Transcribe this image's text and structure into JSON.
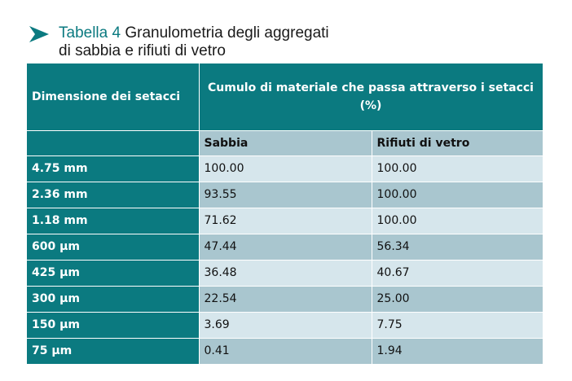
{
  "caption": {
    "prefix": "Tabella 4",
    "line1_rest": " Granulometria degli aggregati",
    "line2": "di sabbia e rifiuti di vetro"
  },
  "table": {
    "header_left": "Dimensione dei setacci",
    "header_span": "Cumulo di materiale che passa attraverso i setacci (%)",
    "sub_left": "",
    "sub_sand": "Sabbia",
    "sub_glass": "Rifiuti di vetro",
    "rows": [
      {
        "size": "4.75 mm",
        "sand": "100.00",
        "glass": "100.00"
      },
      {
        "size": "2.36 mm",
        "sand": "93.55",
        "glass": "100.00"
      },
      {
        "size": "1.18 mm",
        "sand": "71.62",
        "glass": "100.00"
      },
      {
        "size": "600 µm",
        "sand": "47.44",
        "glass": "56.34"
      },
      {
        "size": "425 µm",
        "sand": "36.48",
        "glass": "40.67"
      },
      {
        "size": "300 µm",
        "sand": "22.54",
        "glass": "25.00"
      },
      {
        "size": "150 µm",
        "sand": "3.69",
        "glass": "7.75"
      },
      {
        "size": "75 µm",
        "sand": "0.41",
        "glass": "1.94"
      }
    ]
  },
  "colors": {
    "teal": "#0b7a80",
    "row_light": "#d6e6ec",
    "row_dark": "#a9c6cf"
  },
  "icons": {
    "caption_marker": "arrow-right-icon"
  }
}
